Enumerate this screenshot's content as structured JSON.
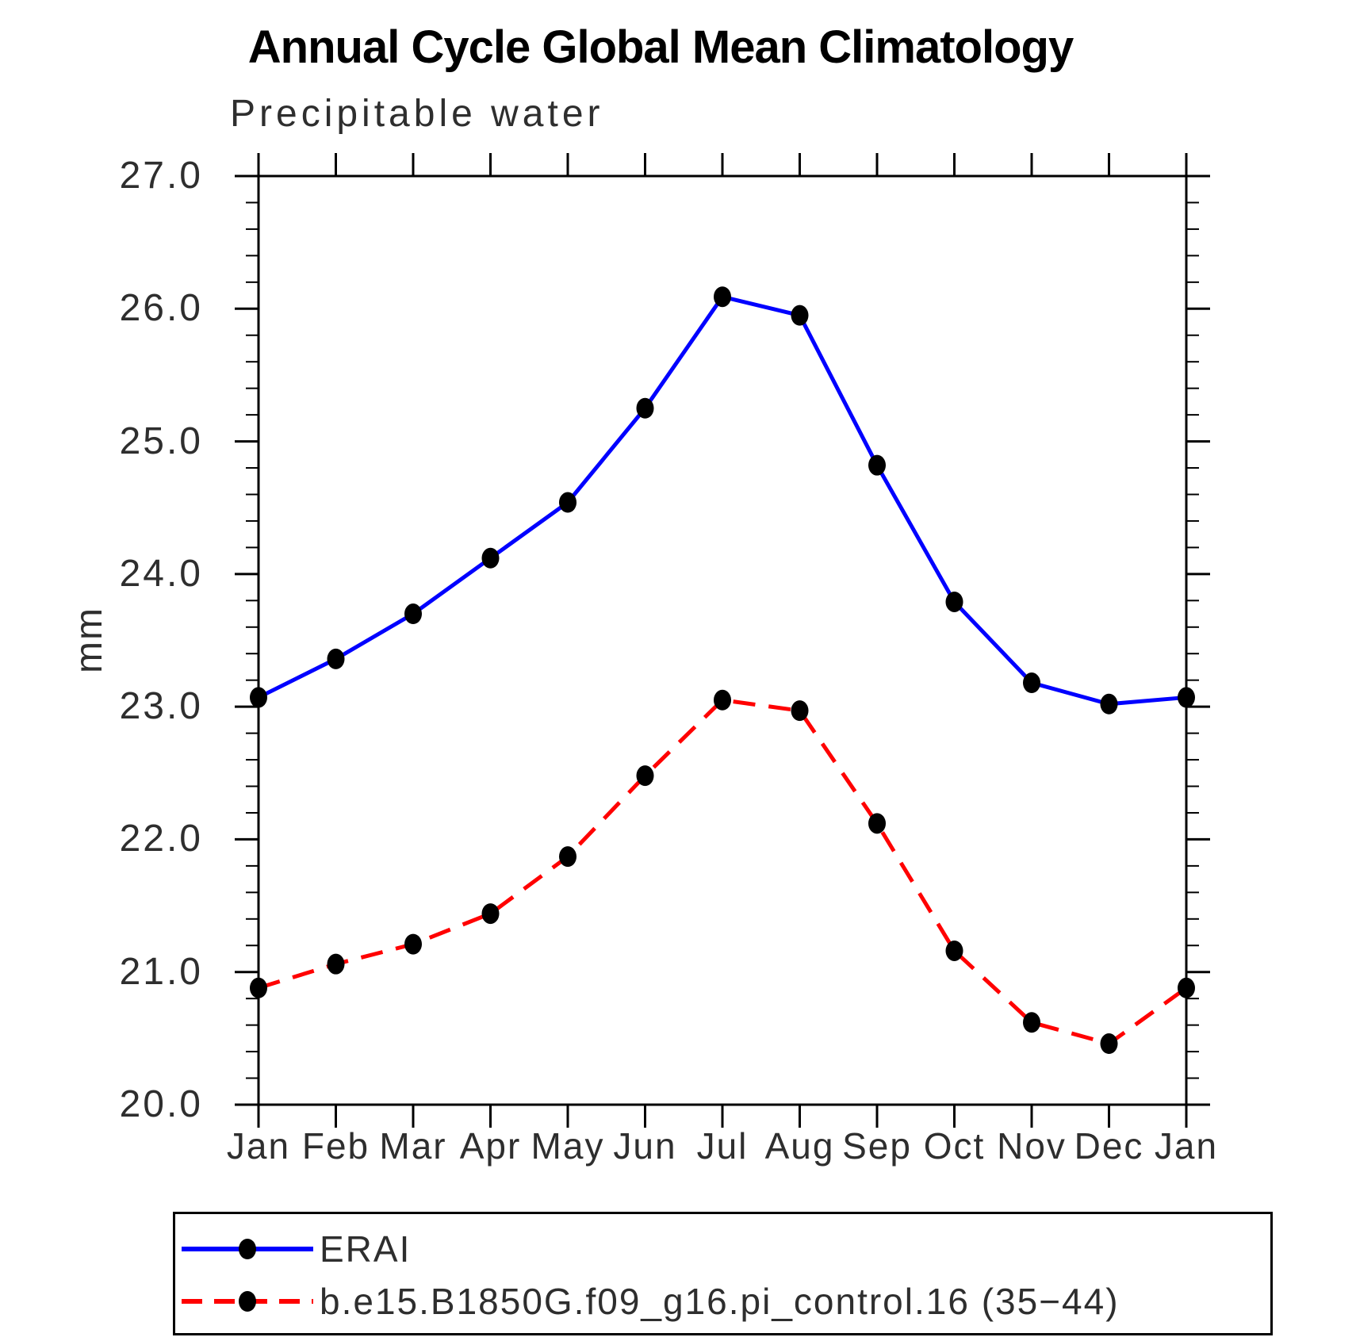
{
  "title": "Annual Cycle Global Mean Climatology",
  "subtitle": "Precipitable water",
  "ylabel": "mm",
  "colors": {
    "erai_line": "#0000ff",
    "model_line": "#ff0000",
    "marker": "#000000",
    "axis": "#000000",
    "label_text": "#2e2e2e"
  },
  "legend": {
    "entries": [
      {
        "label": "ERAI"
      },
      {
        "label": "b.e15.B1850G.f09_g16.pi_control.16 (35−44)"
      }
    ]
  },
  "chart_data": {
    "type": "line",
    "title": "Annual Cycle Global Mean Climatology",
    "subtitle": "Precipitable water",
    "xlabel": "",
    "ylabel": "mm",
    "categories": [
      "Jan",
      "Feb",
      "Mar",
      "Apr",
      "May",
      "Jun",
      "Jul",
      "Aug",
      "Sep",
      "Oct",
      "Nov",
      "Dec",
      "Jan"
    ],
    "series": [
      {
        "name": "ERAI",
        "color": "#0000ff",
        "line_style": "solid",
        "marker": "filled-circle",
        "marker_color": "#000000",
        "values": [
          23.07,
          23.36,
          23.7,
          24.12,
          24.54,
          25.25,
          26.09,
          25.95,
          24.82,
          23.79,
          23.18,
          23.02,
          23.07
        ]
      },
      {
        "name": "b.e15.B1850G.f09_g16.pi_control.16 (35−44)",
        "color": "#ff0000",
        "line_style": "dashed",
        "marker": "filled-circle",
        "marker_color": "#000000",
        "values": [
          20.88,
          21.06,
          21.21,
          21.44,
          21.87,
          22.48,
          23.05,
          22.97,
          22.12,
          21.16,
          20.62,
          20.46,
          20.88
        ]
      }
    ],
    "ylim": [
      20.0,
      27.0
    ],
    "ytick_step": 1.0,
    "yminor_step": 0.2,
    "ytick_labels": [
      "20.0",
      "21.0",
      "22.0",
      "23.0",
      "24.0",
      "25.0",
      "26.0",
      "27.0"
    ],
    "grid": false,
    "ticks": "outward-all-four-sides",
    "legend_position": "bottom-left-box"
  }
}
